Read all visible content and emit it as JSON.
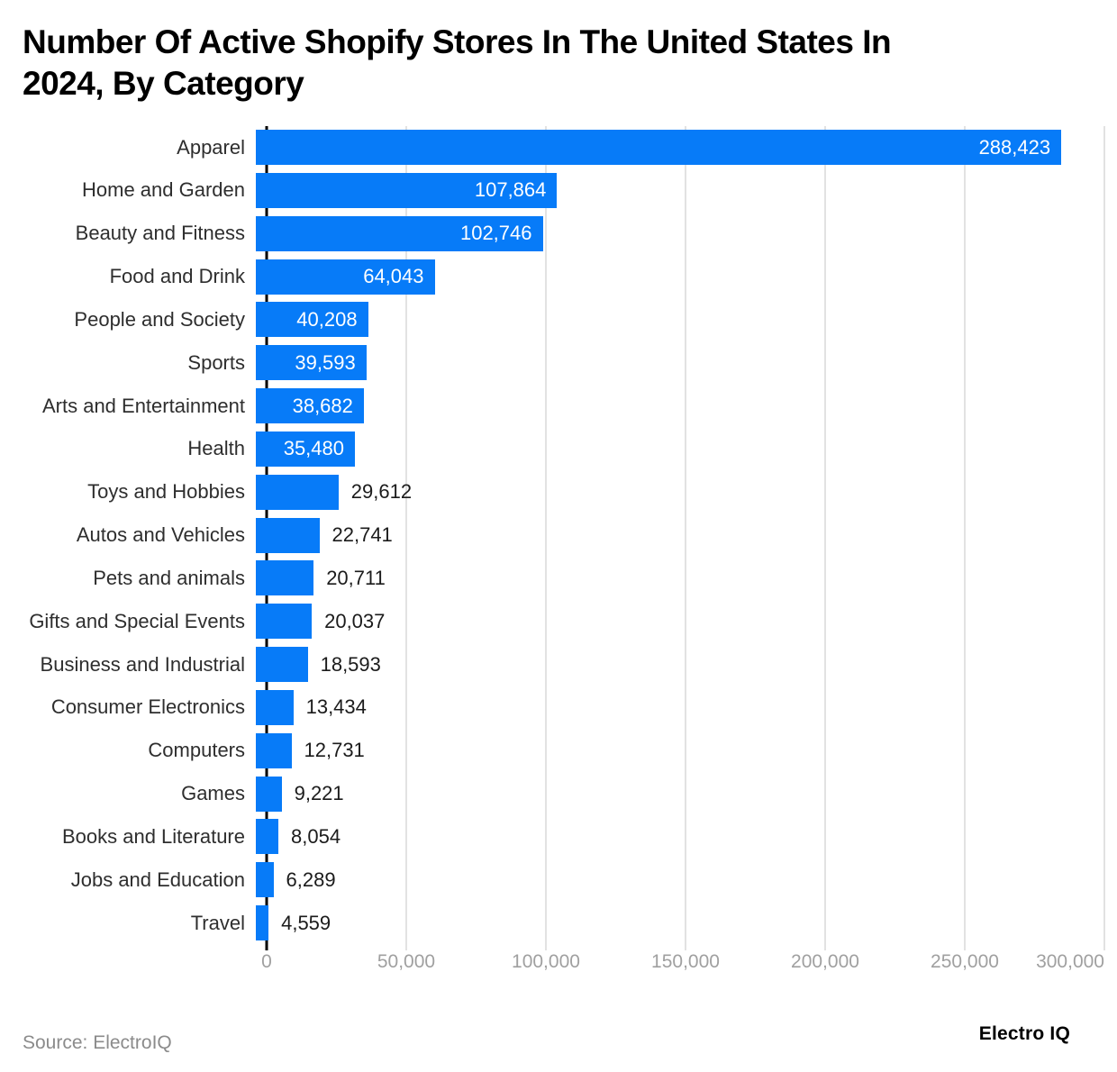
{
  "header": {
    "title": "Number Of Active Shopify Stores In The United States In\n2024, By Category"
  },
  "footer": {
    "source": "Source: ElectroIQ",
    "brand": "Electro IQ"
  },
  "colors": {
    "bar": "#077bf8",
    "grid": "#e2e2e2",
    "axis": "#000000",
    "category_label": "#2e2e2e",
    "value_inside": "#ffffff",
    "value_outside": "#1b1b1b",
    "tick_label": "#a0a0a0",
    "source_text": "#8b8b8b",
    "title": "#000000",
    "brand": "#000000"
  },
  "chart_data": {
    "type": "bar",
    "orientation": "horizontal",
    "title": "Number Of Active Shopify Stores In The United States In 2024, By Category",
    "xlabel": "",
    "ylabel": "",
    "xlim": [
      0,
      300000
    ],
    "grid": true,
    "sort": "descending",
    "categories": [
      "Apparel",
      "Home and Garden",
      "Beauty and Fitness",
      "Food and Drink",
      "People and Society",
      "Sports",
      "Arts and Entertainment",
      "Health",
      "Toys and Hobbies",
      "Autos and Vehicles",
      "Pets and animals",
      "Gifts and Special Events",
      "Business and Industrial",
      "Consumer Electronics",
      "Computers",
      "Games",
      "Books and Literature",
      "Jobs and Education",
      "Travel"
    ],
    "values": [
      288423,
      107864,
      102746,
      64043,
      40208,
      39593,
      38682,
      35480,
      29612,
      22741,
      20711,
      20037,
      18593,
      13434,
      12731,
      9221,
      8054,
      6289,
      4559
    ],
    "value_labels": [
      "288,423",
      "107,864",
      "102,746",
      "64,043",
      "40,208",
      "39,593",
      "38,682",
      "35,480",
      "29,612",
      "22,741",
      "20,711",
      "20,037",
      "18,593",
      "13,434",
      "12,731",
      "9,221",
      "8,054",
      "6,289",
      "4,559"
    ],
    "x_tick_labels": [
      "0",
      "50,000",
      "100,000",
      "150,000",
      "200,000",
      "250,000",
      "300,000"
    ]
  }
}
